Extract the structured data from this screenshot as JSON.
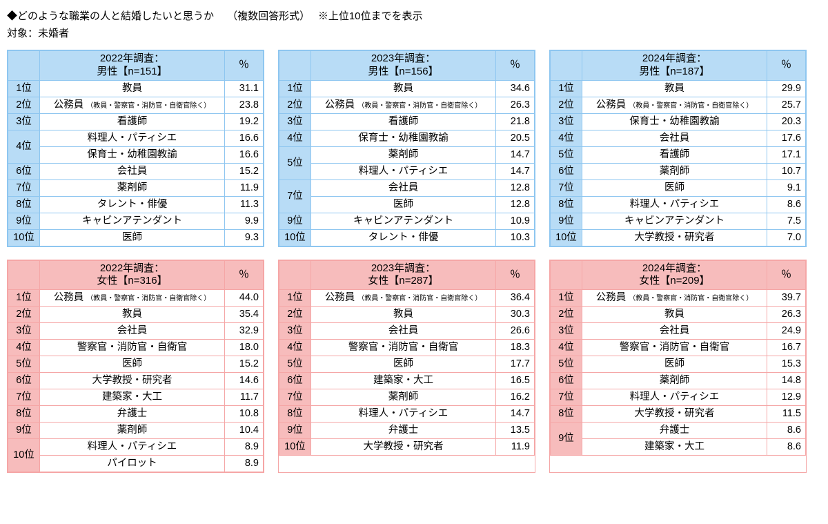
{
  "title": "◆どのような職業の人と結婚したいと思うか　 （複数回答形式）　 ※上位10位までを表示",
  "subtitle": "対象：未婚者",
  "pct_header": "％",
  "note_text": "（教員・警察官・消防官・自衛官除く）",
  "colors": {
    "male_border": "#8ec6f0",
    "male_fill": "#b8dcf6",
    "female_border": "#f5a6a6",
    "female_fill": "#f7bcbc"
  },
  "panels": [
    {
      "gender": "male",
      "header": "2022年調査：\n男性【n=151】",
      "rows": [
        {
          "rank": "1位",
          "job": "教員",
          "pct": "31.1",
          "span": 1
        },
        {
          "rank": "2位",
          "job": "公務員",
          "note": true,
          "pct": "23.8",
          "span": 1
        },
        {
          "rank": "3位",
          "job": "看護師",
          "pct": "19.2",
          "span": 1
        },
        {
          "rank": "4位",
          "job": "料理人・パティシエ",
          "pct": "16.6",
          "span": 2
        },
        {
          "job": "保育士・幼稚園教諭",
          "pct": "16.6"
        },
        {
          "rank": "6位",
          "job": "会社員",
          "pct": "15.2",
          "span": 1
        },
        {
          "rank": "7位",
          "job": "薬剤師",
          "pct": "11.9",
          "span": 1
        },
        {
          "rank": "8位",
          "job": "タレント・俳優",
          "pct": "11.3",
          "span": 1
        },
        {
          "rank": "9位",
          "job": "キャビンアテンダント",
          "pct": "9.9",
          "span": 1
        },
        {
          "rank": "10位",
          "job": "医師",
          "pct": "9.3",
          "span": 1
        }
      ]
    },
    {
      "gender": "male",
      "header": "2023年調査：\n男性【n=156】",
      "rows": [
        {
          "rank": "1位",
          "job": "教員",
          "pct": "34.6",
          "span": 1
        },
        {
          "rank": "2位",
          "job": "公務員",
          "note": true,
          "pct": "26.3",
          "span": 1
        },
        {
          "rank": "3位",
          "job": "看護師",
          "pct": "21.8",
          "span": 1
        },
        {
          "rank": "4位",
          "job": "保育士・幼稚園教諭",
          "pct": "20.5",
          "span": 1
        },
        {
          "rank": "5位",
          "job": "薬剤師",
          "pct": "14.7",
          "span": 2
        },
        {
          "job": "料理人・パティシエ",
          "pct": "14.7"
        },
        {
          "rank": "7位",
          "job": "会社員",
          "pct": "12.8",
          "span": 2
        },
        {
          "job": "医師",
          "pct": "12.8"
        },
        {
          "rank": "9位",
          "job": "キャビンアテンダント",
          "pct": "10.9",
          "span": 1
        },
        {
          "rank": "10位",
          "job": "タレント・俳優",
          "pct": "10.3",
          "span": 1
        }
      ]
    },
    {
      "gender": "male",
      "header": "2024年調査：\n男性【n=187】",
      "rows": [
        {
          "rank": "1位",
          "job": "教員",
          "pct": "29.9",
          "span": 1
        },
        {
          "rank": "2位",
          "job": "公務員",
          "note": true,
          "pct": "25.7",
          "span": 1
        },
        {
          "rank": "3位",
          "job": "保育士・幼稚園教諭",
          "pct": "20.3",
          "span": 1
        },
        {
          "rank": "4位",
          "job": "会社員",
          "pct": "17.6",
          "span": 1
        },
        {
          "rank": "5位",
          "job": "看護師",
          "pct": "17.1",
          "span": 1
        },
        {
          "rank": "6位",
          "job": "薬剤師",
          "pct": "10.7",
          "span": 1
        },
        {
          "rank": "7位",
          "job": "医師",
          "pct": "9.1",
          "span": 1
        },
        {
          "rank": "8位",
          "job": "料理人・パティシエ",
          "pct": "8.6",
          "span": 1
        },
        {
          "rank": "9位",
          "job": "キャビンアテンダント",
          "pct": "7.5",
          "span": 1
        },
        {
          "rank": "10位",
          "job": "大学教授・研究者",
          "pct": "7.0",
          "span": 1
        }
      ]
    },
    {
      "gender": "female",
      "header": "2022年調査：\n女性【n=316】",
      "rows": [
        {
          "rank": "1位",
          "job": "公務員",
          "note": true,
          "pct": "44.0",
          "span": 1
        },
        {
          "rank": "2位",
          "job": "教員",
          "pct": "35.4",
          "span": 1
        },
        {
          "rank": "3位",
          "job": "会社員",
          "pct": "32.9",
          "span": 1
        },
        {
          "rank": "4位",
          "job": "警察官・消防官・自衛官",
          "pct": "18.0",
          "span": 1
        },
        {
          "rank": "5位",
          "job": "医師",
          "pct": "15.2",
          "span": 1
        },
        {
          "rank": "6位",
          "job": "大学教授・研究者",
          "pct": "14.6",
          "span": 1
        },
        {
          "rank": "7位",
          "job": "建築家・大工",
          "pct": "11.7",
          "span": 1
        },
        {
          "rank": "8位",
          "job": "弁護士",
          "pct": "10.8",
          "span": 1
        },
        {
          "rank": "9位",
          "job": "薬剤師",
          "pct": "10.4",
          "span": 1
        },
        {
          "rank": "10位",
          "job": "料理人・パティシエ",
          "pct": "8.9",
          "span": 2
        },
        {
          "job": "パイロット",
          "pct": "8.9"
        }
      ]
    },
    {
      "gender": "female",
      "header": "2023年調査：\n女性【n=287】",
      "rows": [
        {
          "rank": "1位",
          "job": "公務員",
          "note": true,
          "pct": "36.4",
          "span": 1
        },
        {
          "rank": "2位",
          "job": "教員",
          "pct": "30.3",
          "span": 1
        },
        {
          "rank": "3位",
          "job": "会社員",
          "pct": "26.6",
          "span": 1
        },
        {
          "rank": "4位",
          "job": "警察官・消防官・自衛官",
          "pct": "18.3",
          "span": 1
        },
        {
          "rank": "5位",
          "job": "医師",
          "pct": "17.7",
          "span": 1
        },
        {
          "rank": "6位",
          "job": "建築家・大工",
          "pct": "16.5",
          "span": 1
        },
        {
          "rank": "7位",
          "job": "薬剤師",
          "pct": "16.2",
          "span": 1
        },
        {
          "rank": "8位",
          "job": "料理人・パティシエ",
          "pct": "14.7",
          "span": 1
        },
        {
          "rank": "9位",
          "job": "弁護士",
          "pct": "13.5",
          "span": 1
        },
        {
          "rank": "10位",
          "job": "大学教授・研究者",
          "pct": "11.9",
          "span": 1
        }
      ]
    },
    {
      "gender": "female",
      "header": "2024年調査：\n女性【n=209】",
      "rows": [
        {
          "rank": "1位",
          "job": "公務員",
          "note": true,
          "pct": "39.7",
          "span": 1
        },
        {
          "rank": "2位",
          "job": "教員",
          "pct": "26.3",
          "span": 1
        },
        {
          "rank": "3位",
          "job": "会社員",
          "pct": "24.9",
          "span": 1
        },
        {
          "rank": "4位",
          "job": "警察官・消防官・自衛官",
          "pct": "16.7",
          "span": 1
        },
        {
          "rank": "5位",
          "job": "医師",
          "pct": "15.3",
          "span": 1
        },
        {
          "rank": "6位",
          "job": "薬剤師",
          "pct": "14.8",
          "span": 1
        },
        {
          "rank": "7位",
          "job": "料理人・パティシエ",
          "pct": "12.9",
          "span": 1
        },
        {
          "rank": "8位",
          "job": "大学教授・研究者",
          "pct": "11.5",
          "span": 1
        },
        {
          "rank": "9位",
          "job": "弁護士",
          "pct": "8.6",
          "span": 2
        },
        {
          "job": "建築家・大工",
          "pct": "8.6"
        }
      ]
    }
  ]
}
